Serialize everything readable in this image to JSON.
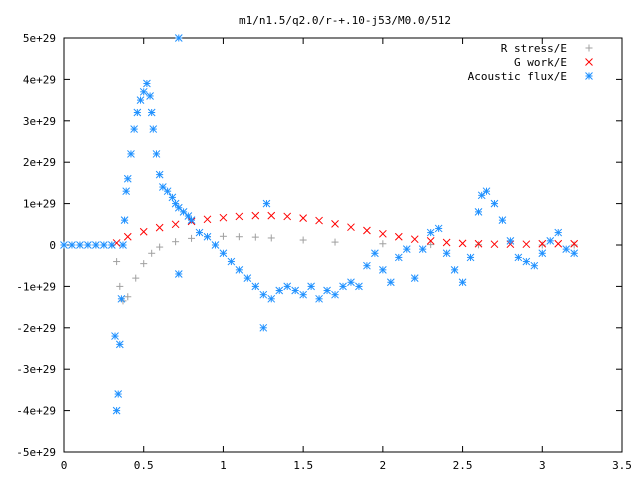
{
  "chart_data": {
    "type": "scatter",
    "title": "m1/n1.5/q2.0/r-+.10-j53/M0.0/512",
    "xlabel": "",
    "ylabel": "",
    "xlim": [
      0,
      3.5
    ],
    "ylim": [
      -5e+29,
      5e+29
    ],
    "x_ticks": [
      {
        "value": 0,
        "label": "0"
      },
      {
        "value": 0.5,
        "label": "0.5"
      },
      {
        "value": 1,
        "label": "1"
      },
      {
        "value": 1.5,
        "label": "1.5"
      },
      {
        "value": 2,
        "label": "2"
      },
      {
        "value": 2.5,
        "label": "2.5"
      },
      {
        "value": 3,
        "label": "3"
      },
      {
        "value": 3.5,
        "label": "3.5"
      }
    ],
    "y_ticks": [
      {
        "value": 5e+29,
        "label": "5e+29"
      },
      {
        "value": 4e+29,
        "label": "4e+29"
      },
      {
        "value": 3e+29,
        "label": "3e+29"
      },
      {
        "value": 2e+29,
        "label": "2e+29"
      },
      {
        "value": 1e+29,
        "label": "1e+29"
      },
      {
        "value": 0,
        "label": "0"
      },
      {
        "value": -1e+29,
        "label": "-1e+29"
      },
      {
        "value": -2e+29,
        "label": "-2e+29"
      },
      {
        "value": -3e+29,
        "label": "-3e+29"
      },
      {
        "value": -4e+29,
        "label": "-4e+29"
      },
      {
        "value": -5e+29,
        "label": "-5e+29"
      }
    ],
    "grid": false,
    "legend_position": "top-right",
    "series": [
      {
        "name": "R stress/E",
        "marker": "plus",
        "color": "#a0a0a0",
        "x": [
          0.0,
          0.1,
          0.2,
          0.3,
          0.33,
          0.35,
          0.37,
          0.4,
          0.45,
          0.5,
          0.55,
          0.6,
          0.7,
          0.8,
          0.9,
          1.0,
          1.1,
          1.2,
          1.3,
          1.5,
          1.7,
          2.0,
          2.3,
          2.6,
          3.0,
          3.2
        ],
        "y": [
          0,
          0,
          0,
          0,
          -4e+28,
          -1e+29,
          -1.35e+29,
          -1.25e+29,
          -8e+28,
          -4.5e+28,
          -2e+28,
          -5e+27,
          8e+27,
          1.6e+28,
          2e+28,
          2.1e+28,
          2e+28,
          1.9e+28,
          1.7e+28,
          1.2e+28,
          7e+27,
          3e+27,
          1e+27,
          5e+26,
          0,
          0
        ]
      },
      {
        "name": "G work/E",
        "marker": "cross",
        "color": "#ff0000",
        "x": [
          0.33,
          0.4,
          0.5,
          0.6,
          0.7,
          0.8,
          0.9,
          1.0,
          1.1,
          1.2,
          1.3,
          1.4,
          1.5,
          1.6,
          1.7,
          1.8,
          1.9,
          2.0,
          2.1,
          2.2,
          2.3,
          2.4,
          2.5,
          2.6,
          2.7,
          2.8,
          2.9,
          3.0,
          3.1,
          3.2
        ],
        "y": [
          5e+27,
          2e+28,
          3.2e+28,
          4.2e+28,
          5e+28,
          5.7e+28,
          6.2e+28,
          6.6e+28,
          6.9e+28,
          7.1e+28,
          7.1e+28,
          6.9e+28,
          6.5e+28,
          5.9e+28,
          5.1e+28,
          4.3e+28,
          3.5e+28,
          2.7e+28,
          2e+28,
          1.4e+28,
          1e+28,
          6e+27,
          4e+27,
          3e+27,
          2e+27,
          2e+27,
          2e+27,
          3e+27,
          3e+27,
          3e+27
        ]
      },
      {
        "name": "Acoustic flux/E",
        "marker": "star",
        "color": "#1e90ff",
        "x": [
          0.0,
          0.05,
          0.1,
          0.15,
          0.2,
          0.25,
          0.3,
          0.32,
          0.33,
          0.34,
          0.35,
          0.36,
          0.37,
          0.38,
          0.39,
          0.4,
          0.42,
          0.44,
          0.46,
          0.48,
          0.5,
          0.52,
          0.54,
          0.55,
          0.56,
          0.58,
          0.6,
          0.62,
          0.65,
          0.68,
          0.7,
          0.72,
          0.75,
          0.78,
          0.8,
          0.85,
          0.9,
          0.95,
          1.0,
          1.05,
          1.1,
          1.15,
          1.2,
          1.25,
          1.3,
          1.35,
          1.4,
          1.45,
          1.5,
          1.55,
          1.6,
          1.65,
          1.7,
          1.75,
          1.8,
          1.85,
          1.9,
          1.95,
          2.0,
          2.05,
          2.1,
          2.15,
          2.2,
          2.25,
          2.3,
          2.35,
          2.4,
          2.45,
          2.5,
          2.55,
          2.6,
          2.62,
          2.65,
          2.7,
          2.75,
          2.8,
          2.85,
          2.9,
          2.95,
          3.0,
          3.05,
          3.1,
          3.15,
          3.2,
          0.72,
          0.72,
          1.25,
          1.27
        ],
        "y": [
          0,
          0,
          0,
          0,
          0,
          0,
          0,
          -2.2e+29,
          -4e+29,
          -3.6e+29,
          -2.4e+29,
          -1.3e+29,
          0,
          6e+28,
          1.3e+29,
          1.6e+29,
          2.2e+29,
          2.8e+29,
          3.2e+29,
          3.5e+29,
          3.7e+29,
          3.9e+29,
          3.6e+29,
          3.2e+29,
          2.8e+29,
          2.2e+29,
          1.7e+29,
          1.4e+29,
          1.3e+29,
          1.15e+29,
          1e+29,
          9e+28,
          8e+28,
          7e+28,
          6e+28,
          3e+28,
          2e+28,
          0.0,
          -2e+28,
          -4e+28,
          -6e+28,
          -8e+28,
          -1e+29,
          -1.2e+29,
          -1.3e+29,
          -1.1e+29,
          -1e+29,
          -1.1e+29,
          -1.2e+29,
          -1e+29,
          -1.3e+29,
          -1.1e+29,
          -1.2e+29,
          -1e+29,
          -9e+28,
          -1e+29,
          -5e+28,
          -2e+28,
          -6e+28,
          -9e+28,
          -3e+28,
          -1e+28,
          -8e+28,
          -1e+28,
          3e+28,
          4e+28,
          -2e+28,
          -6e+28,
          -9e+28,
          -3e+28,
          8e+28,
          1.2e+29,
          1.3e+29,
          1e+29,
          6e+28,
          1e+28,
          -3e+28,
          -4e+28,
          -5e+28,
          -2e+28,
          1e+28,
          3e+28,
          -1e+28,
          -2e+28,
          5e+29,
          -7e+28,
          -2e+29,
          1e+29
        ]
      }
    ]
  }
}
